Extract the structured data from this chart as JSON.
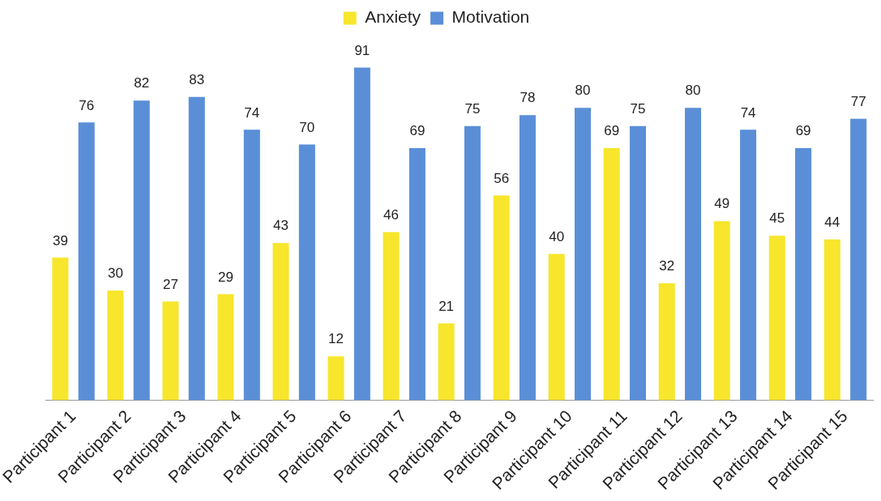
{
  "chart_data": {
    "type": "bar",
    "categories": [
      "Participant 1",
      "Participant 2",
      "Participant 3",
      "Participant 4",
      "Participant 5",
      "Participant 6",
      "Participant 7",
      "Participant 8",
      "Participant 9",
      "Participant 10",
      "Participant 11",
      "Participant 12",
      "Participant 13",
      "Participant 14",
      "Participant 15"
    ],
    "series": [
      {
        "name": "Anxiety",
        "color": "#f7e62c",
        "values": [
          39,
          30,
          27,
          29,
          43,
          12,
          46,
          21,
          56,
          40,
          69,
          32,
          49,
          45,
          44
        ]
      },
      {
        "name": "Motivation",
        "color": "#5a8fd8",
        "values": [
          76,
          82,
          83,
          74,
          70,
          91,
          69,
          75,
          78,
          80,
          75,
          80,
          74,
          69,
          77
        ]
      }
    ],
    "data_labels": true,
    "legend": "top",
    "grid": false
  }
}
